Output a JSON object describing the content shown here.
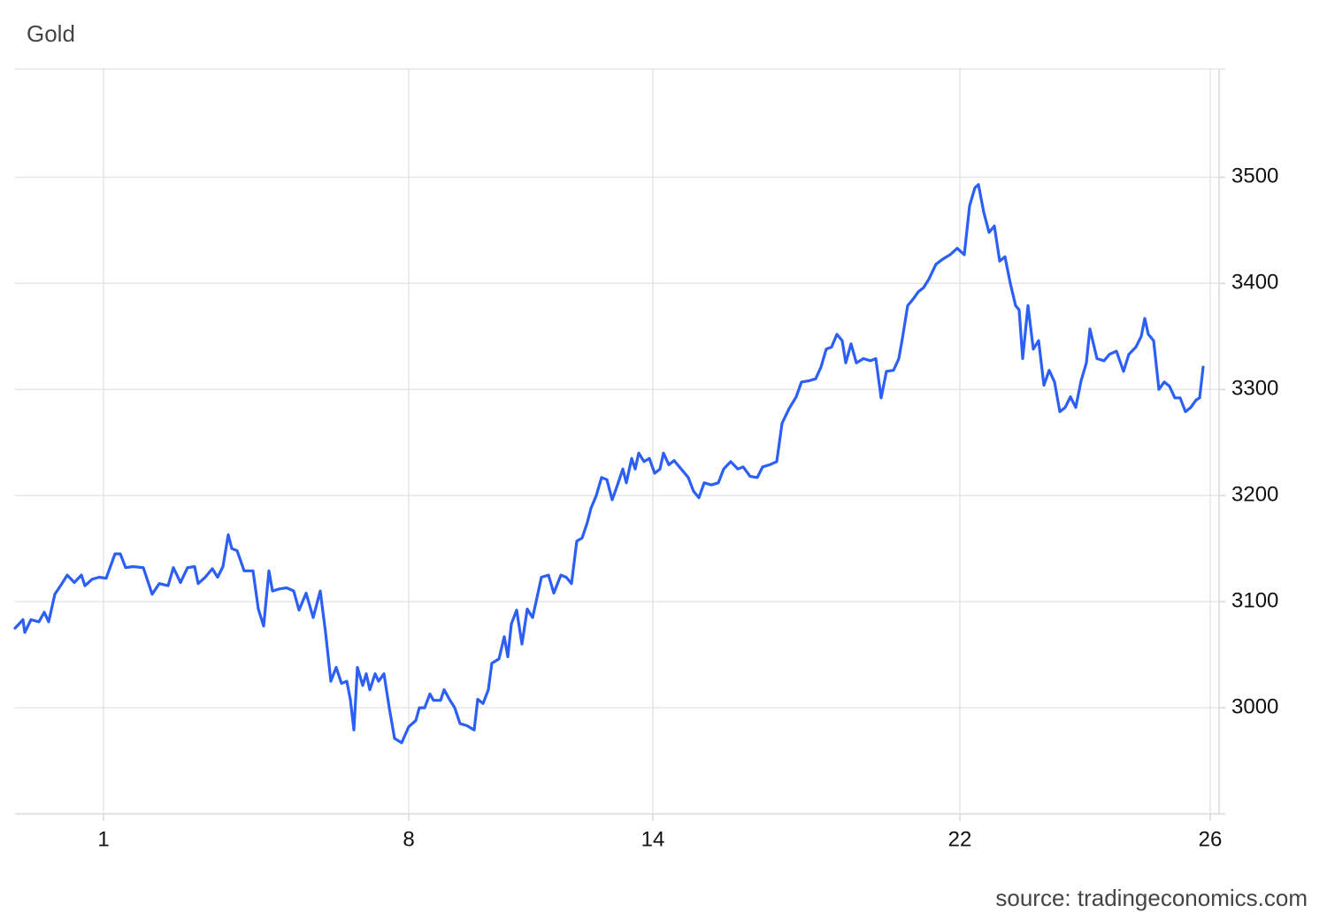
{
  "chart_data": {
    "type": "line",
    "title": "Gold",
    "source": "source: tradingeconomics.com",
    "color": "#2b5ff5",
    "grid": true,
    "xlim": [
      0,
      1368
    ],
    "ylim": [
      2900,
      3602
    ],
    "xticks": [
      {
        "value": 100,
        "label": "1"
      },
      {
        "value": 445,
        "label": "8"
      },
      {
        "value": 721,
        "label": "14"
      },
      {
        "value": 1068,
        "label": "22"
      },
      {
        "value": 1351,
        "label": "26"
      }
    ],
    "yticks": [
      3000,
      3100,
      3200,
      3300,
      3400,
      3500
    ],
    "x": [
      0,
      9,
      11,
      18,
      27,
      33,
      38,
      45,
      53,
      59,
      67,
      75,
      79,
      87,
      95,
      103,
      113,
      119,
      125,
      133,
      145,
      155,
      163,
      173,
      179,
      187,
      195,
      203,
      207,
      215,
      223,
      229,
      235,
      241,
      245,
      251,
      259,
      269,
      275,
      281,
      287,
      291,
      299,
      307,
      315,
      321,
      329,
      337,
      345,
      351,
      357,
      363,
      369,
      375,
      379,
      383,
      387,
      393,
      397,
      401,
      407,
      411,
      417,
      423,
      429,
      437,
      445,
      453,
      457,
      463,
      469,
      473,
      481,
      485,
      491,
      497,
      503,
      511,
      519,
      523,
      529,
      535,
      539,
      547,
      553,
      557,
      561,
      567,
      573,
      579,
      585,
      589,
      595,
      603,
      609,
      617,
      623,
      629,
      635,
      641,
      647,
      651,
      657,
      663,
      669,
      675,
      681,
      687,
      691,
      697,
      701,
      705,
      711,
      717,
      723,
      729,
      733,
      739,
      745,
      753,
      761,
      767,
      773,
      779,
      787,
      795,
      801,
      809,
      817,
      823,
      831,
      839,
      845,
      853,
      861,
      867,
      875,
      883,
      889,
      897,
      905,
      911,
      917,
      923,
      929,
      935,
      939,
      945,
      951,
      959,
      967,
      973,
      979,
      985,
      993,
      999,
      1003,
      1009,
      1015,
      1021,
      1027,
      1033,
      1041,
      1049,
      1057,
      1065,
      1073,
      1079,
      1085,
      1089,
      1095,
      1101,
      1107,
      1113,
      1119,
      1125,
      1131,
      1135,
      1139,
      1145,
      1151,
      1157,
      1163,
      1169,
      1175,
      1181,
      1187,
      1193,
      1199,
      1205,
      1211,
      1215,
      1223,
      1231,
      1237,
      1245,
      1253,
      1259,
      1267,
      1273,
      1277,
      1281,
      1287,
      1293,
      1299,
      1305,
      1311,
      1317,
      1323,
      1329,
      1335,
      1339,
      1343
    ],
    "values": [
      3075,
      3083,
      3071,
      3083,
      3081,
      3090,
      3081,
      3107,
      3117,
      3125,
      3118,
      3125,
      3115,
      3121,
      3123,
      3122,
      3145,
      3145,
      3132,
      3133,
      3132,
      3107,
      3117,
      3115,
      3132,
      3118,
      3132,
      3133,
      3117,
      3123,
      3131,
      3123,
      3133,
      3163,
      3150,
      3148,
      3129,
      3129,
      3093,
      3077,
      3129,
      3110,
      3112,
      3113,
      3110,
      3092,
      3108,
      3085,
      3110,
      3071,
      3025,
      3038,
      3023,
      3025,
      3008,
      2979,
      3038,
      3021,
      3032,
      3017,
      3032,
      3025,
      3032,
      3000,
      2971,
      2967,
      2982,
      2988,
      3000,
      3000,
      3013,
      3007,
      3007,
      3017,
      3008,
      3000,
      2985,
      2983,
      2979,
      3008,
      3004,
      3017,
      3042,
      3046,
      3067,
      3048,
      3079,
      3092,
      3060,
      3093,
      3085,
      3100,
      3123,
      3125,
      3108,
      3125,
      3123,
      3117,
      3157,
      3160,
      3175,
      3188,
      3200,
      3217,
      3215,
      3196,
      3210,
      3225,
      3212,
      3235,
      3225,
      3240,
      3232,
      3235,
      3221,
      3225,
      3240,
      3229,
      3233,
      3225,
      3217,
      3204,
      3198,
      3212,
      3210,
      3212,
      3225,
      3232,
      3225,
      3227,
      3218,
      3217,
      3227,
      3229,
      3232,
      3268,
      3282,
      3293,
      3307,
      3308,
      3310,
      3321,
      3338,
      3340,
      3352,
      3346,
      3325,
      3343,
      3325,
      3329,
      3327,
      3329,
      3292,
      3317,
      3318,
      3329,
      3348,
      3379,
      3385,
      3392,
      3396,
      3404,
      3418,
      3423,
      3427,
      3433,
      3427,
      3473,
      3490,
      3493,
      3467,
      3448,
      3454,
      3421,
      3425,
      3400,
      3379,
      3375,
      3329,
      3379,
      3338,
      3346,
      3304,
      3318,
      3307,
      3279,
      3283,
      3293,
      3283,
      3308,
      3325,
      3357,
      3329,
      3327,
      3333,
      3336,
      3317,
      3333,
      3340,
      3350,
      3367,
      3352,
      3346,
      3300,
      3307,
      3303,
      3292,
      3292,
      3279,
      3283,
      3290,
      3292,
      3321
    ]
  }
}
